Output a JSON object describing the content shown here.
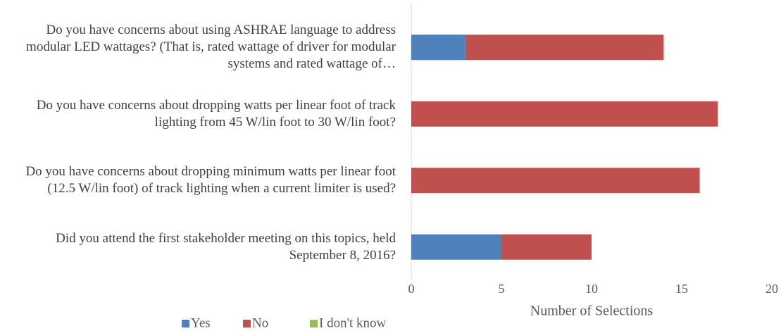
{
  "chart_data": {
    "type": "stacked_barh",
    "categories": [
      "Do you have concerns about using ASHRAE language to address modular LED wattages? (That is, rated wattage of driver for modular systems and rated wattage of…",
      "Do you have concerns about dropping watts per linear foot of track lighting from 45 W/lin foot to 30 W/lin foot?",
      "Do you have concerns about dropping minimum watts per linear foot (12.5 W/lin foot) of track lighting when a current limiter is used?",
      "Did you attend the first stakeholder meeting on this topics, held September 8, 2016?"
    ],
    "series": [
      {
        "name": "Yes",
        "color": "#4f81bd",
        "values": [
          3,
          0,
          0,
          5
        ]
      },
      {
        "name": "No",
        "color": "#c0504d",
        "values": [
          11,
          17,
          16,
          5
        ]
      },
      {
        "name": "I don't know",
        "color": "#9bbb59",
        "values": [
          0,
          0,
          0,
          0
        ]
      }
    ],
    "xlabel": "Number of Selections",
    "xlim": [
      0,
      20
    ],
    "xticks": [
      0,
      5,
      10,
      15,
      20
    ],
    "legend": "bottom-left"
  }
}
